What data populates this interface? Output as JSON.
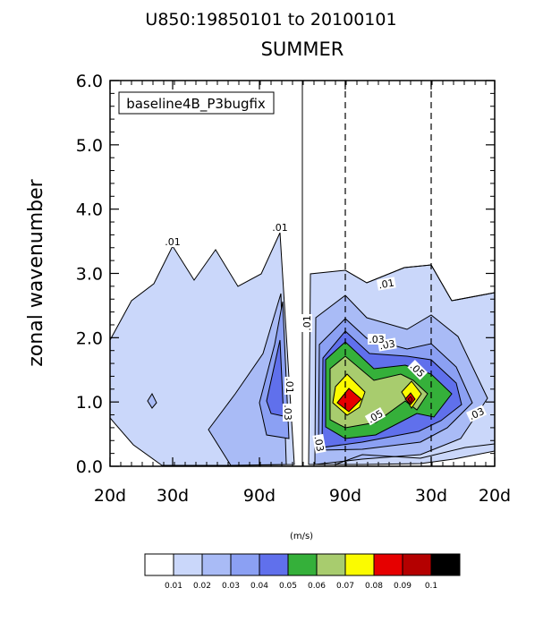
{
  "chart_data": {
    "type": "contour",
    "title_line1": "U850:19850101 to 20100101",
    "title_line2": "SUMMER",
    "case_label": "baseline4B_P3bugfix",
    "ylabel": "zonal wavenumber",
    "ylim": [
      0,
      6
    ],
    "yticks": [
      "0.0",
      "1.0",
      "2.0",
      "3.0",
      "4.0",
      "5.0",
      "6.0"
    ],
    "xticks": [
      "20d",
      "30d",
      "90d",
      "90d",
      "30d",
      "20d"
    ],
    "units_label": "(m/s)",
    "colorbar": {
      "colors": [
        "#ffffff",
        "#cad7fa",
        "#a9bbf6",
        "#8ba0f3",
        "#6070ec",
        "#35b03a",
        "#a8cc6e",
        "#fbfb00",
        "#e60000",
        "#b40000",
        "#000000"
      ],
      "labels": [
        "0.01",
        "0.02",
        "0.03",
        "0.04",
        "0.05",
        "0.06",
        "0.07",
        "0.08",
        "0.09",
        "0.1"
      ]
    },
    "contour_labels": [
      ".01",
      ".01",
      ".01",
      ".01",
      ".01",
      ".03",
      ".03",
      ".03",
      ".03",
      ".05",
      ".05",
      ".03"
    ]
  }
}
